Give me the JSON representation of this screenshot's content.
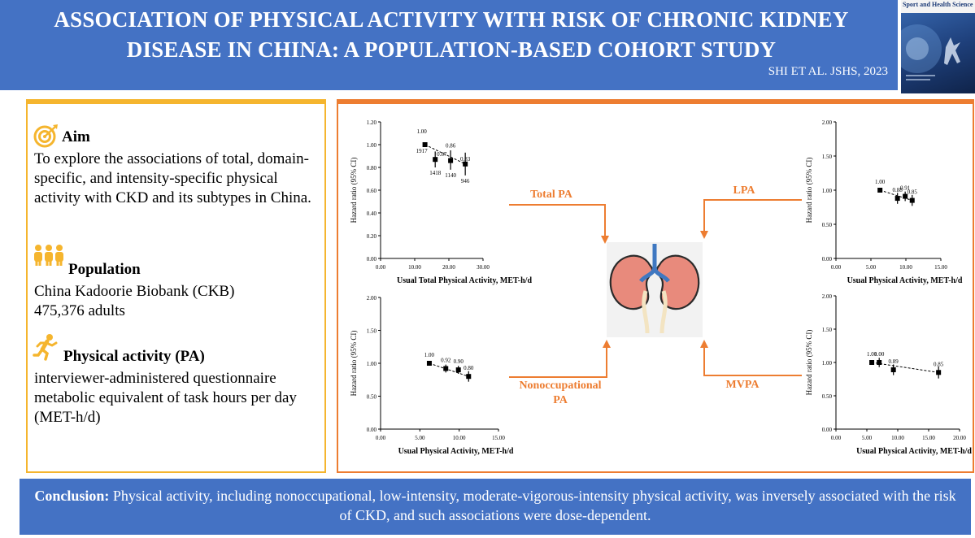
{
  "header": {
    "title_line1": "ASSOCIATION OF PHYSICAL ACTIVITY WITH RISK OF CHRONIC KIDNEY",
    "title_line2": "DISEASE IN CHINA: A POPULATION-BASED COHORT STUDY",
    "citation": "SHI ET AL. JSHS, 2023",
    "journal_name": "Sport and Health Science"
  },
  "aim": {
    "heading": "Aim",
    "text": "To explore the associations of total, domain-specific, and intensity-specific physical activity with CKD and its subtypes in China.",
    "icon": "target-icon"
  },
  "population": {
    "heading": "Population",
    "line1": "China Kadoorie Biobank (CKB)",
    "line2": "475,376 adults",
    "icon": "people-icon"
  },
  "physical_activity": {
    "heading": "Physical activity (PA)",
    "line1": "interviewer-administered questionnaire",
    "line2": "metabolic equivalent of task hours per day (MET-h/d)",
    "icon": "runner-icon"
  },
  "arrows": {
    "total": "Total PA",
    "lpa": "LPA",
    "nonocc_line1": "Nonoccupational",
    "nonocc_line2": "PA",
    "mvpa": "MVPA"
  },
  "center_icon": "kidneys-icon",
  "footer": {
    "label": "Conclusion:",
    "text": " Physical activity, including nonoccupational, low-intensity, moderate-vigorous-intensity physical activity, was inversely associated with the risk of CKD, and such associations were dose-dependent."
  },
  "colors": {
    "header": "#4472c4",
    "left_border": "#f5b52e",
    "right_border": "#ed7d31",
    "accent": "#ed7d31"
  },
  "chart_data": [
    {
      "id": "total",
      "type": "scatter",
      "xlabel": "Usual Total Physical Activity, MET-h/d",
      "ylabel": "Hazard ratio (95% CI)",
      "xlim": [
        0,
        30
      ],
      "ylim": [
        0,
        1.2
      ],
      "xticks": [
        "0.00",
        "10.00",
        "20.00",
        "30.00"
      ],
      "yticks": [
        "0.00",
        "0.20",
        "0.40",
        "0.60",
        "0.80",
        "1.00",
        "1.20"
      ],
      "x": [
        13,
        16,
        20.5,
        24.8
      ],
      "y": [
        1.0,
        0.87,
        0.86,
        0.83
      ],
      "ci_low": [
        1.0,
        0.8,
        0.78,
        0.73
      ],
      "ci_high": [
        1.0,
        0.94,
        0.95,
        0.93
      ],
      "labels": [
        "1.00",
        "0.87",
        "0.86",
        "0.83"
      ],
      "counts": [
        "1917",
        "1418",
        "1140",
        "946"
      ],
      "trend_line": true
    },
    {
      "id": "nonoccupational",
      "type": "scatter",
      "xlabel": "Usual Physical Activity, MET-h/d",
      "ylabel": "Hazard ratio (95% CI)",
      "xlim": [
        0,
        15
      ],
      "ylim": [
        0,
        2
      ],
      "xticks": [
        "0.00",
        "5.00",
        "10.00",
        "15.00"
      ],
      "yticks": [
        "0.00",
        "0.50",
        "1.00",
        "1.50",
        "2.00"
      ],
      "x": [
        6.2,
        8.3,
        9.9,
        11.2
      ],
      "y": [
        1.0,
        0.92,
        0.9,
        0.8
      ],
      "ci_low": [
        1.0,
        0.86,
        0.84,
        0.72
      ],
      "ci_high": [
        1.0,
        0.98,
        0.96,
        0.88
      ],
      "labels": [
        "1.00",
        "0.92",
        "0.90",
        "0.80"
      ],
      "trend_line": true
    },
    {
      "id": "lpa",
      "type": "scatter",
      "xlabel": "Usual Physical Activity, MET-h/d",
      "ylabel": "Hazard ratio (95% CI)",
      "xlim": [
        0,
        15
      ],
      "ylim": [
        0,
        2
      ],
      "xticks": [
        "0.00",
        "5.00",
        "10.00",
        "15.00"
      ],
      "yticks": [
        "0.00",
        "0.50",
        "1.00",
        "1.50",
        "2.00"
      ],
      "x": [
        6.3,
        8.8,
        9.9,
        10.9
      ],
      "y": [
        1.0,
        0.88,
        0.91,
        0.85
      ],
      "ci_low": [
        1.0,
        0.8,
        0.84,
        0.77
      ],
      "ci_high": [
        1.0,
        0.96,
        0.98,
        0.93
      ],
      "labels": [
        "1.00",
        "0.88",
        "0.91",
        "0.85"
      ],
      "trend_line": true
    },
    {
      "id": "mvpa",
      "type": "scatter",
      "xlabel": "Usual Physical Activity, MET-h/d",
      "ylabel": "Hazard ratio (95% CI)",
      "xlim": [
        0,
        20
      ],
      "ylim": [
        0,
        2
      ],
      "xticks": [
        "0.00",
        "5.00",
        "10.00",
        "15.00",
        "20.00"
      ],
      "yticks": [
        "0.00",
        "0.50",
        "1.00",
        "1.50",
        "2.00"
      ],
      "x": [
        5.8,
        7.0,
        9.3,
        16.6
      ],
      "y": [
        1.0,
        1.0,
        0.89,
        0.85
      ],
      "ci_low": [
        1.0,
        0.93,
        0.81,
        0.76
      ],
      "ci_high": [
        1.0,
        1.07,
        0.97,
        0.94
      ],
      "labels": [
        "1.00",
        "1.00",
        "0.89",
        "0.85"
      ],
      "trend_line": true
    }
  ]
}
